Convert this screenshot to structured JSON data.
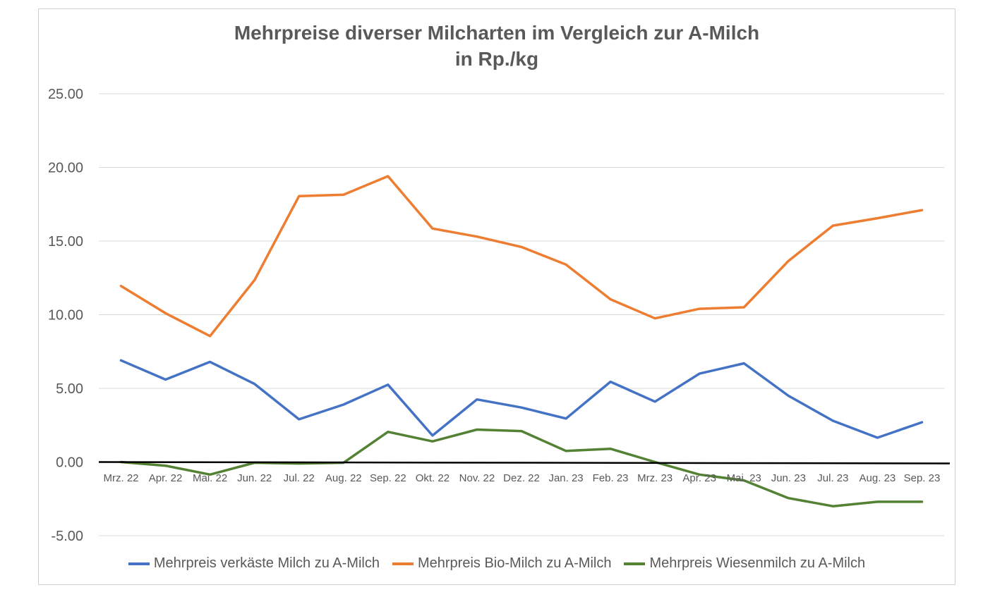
{
  "chart_data": {
    "type": "line",
    "title": "Mehrpreise diverser Milcharten im Vergleich zur A-Milch",
    "subtitle": "in Rp./kg",
    "xlabel": "",
    "ylabel": "",
    "ylim": [
      -5,
      25
    ],
    "yticks": [
      "25.00",
      "20.00",
      "15.00",
      "10.00",
      "5.00",
      "0.00",
      "-5.00"
    ],
    "ytick_values": [
      25,
      20,
      15,
      10,
      5,
      0,
      -5
    ],
    "categories": [
      "Mrz. 22",
      "Apr. 22",
      "Mai. 22",
      "Jun. 22",
      "Jul. 22",
      "Aug. 22",
      "Sep. 22",
      "Okt. 22",
      "Nov. 22",
      "Dez. 22",
      "Jan. 23",
      "Feb. 23",
      "Mrz. 23",
      "Apr. 23",
      "Mai. 23",
      "Jun. 23",
      "Jul. 23",
      "Aug. 23",
      "Sep. 23"
    ],
    "grid": true,
    "legend_position": "bottom",
    "series": [
      {
        "name": "Mehrpreis verkäste Milch zu A-Milch",
        "color": "#4472c4",
        "values": [
          6.9,
          5.6,
          6.8,
          5.3,
          2.9,
          3.9,
          5.25,
          1.8,
          4.25,
          3.7,
          2.95,
          5.45,
          4.1,
          6.0,
          6.7,
          4.5,
          2.8,
          1.65,
          2.7
        ]
      },
      {
        "name": "Mehrpreis Bio-Milch zu A-Milch",
        "color": "#ed7d31",
        "values": [
          11.95,
          10.1,
          8.55,
          12.35,
          18.05,
          18.15,
          19.4,
          15.85,
          15.3,
          14.6,
          13.4,
          11.05,
          9.75,
          10.4,
          10.5,
          13.65,
          16.05,
          16.55,
          17.1
        ]
      },
      {
        "name": "Mehrpreis Wiesenmilch zu A-Milch",
        "color": "#548235",
        "values": [
          0.0,
          -0.25,
          -0.85,
          -0.05,
          -0.1,
          -0.05,
          2.05,
          1.4,
          2.2,
          2.1,
          0.75,
          0.9,
          0.0,
          -0.85,
          -1.25,
          -2.45,
          -3.0,
          -2.7,
          -2.7
        ]
      }
    ]
  }
}
